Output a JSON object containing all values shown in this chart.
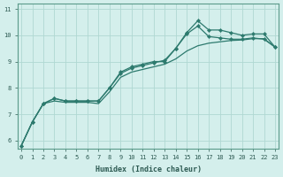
{
  "xlabel": "Humidex (Indice chaleur)",
  "bg_color": "#d4efec",
  "line_color": "#2d7a6e",
  "grid_color": "#b0d8d2",
  "xlim": [
    -0.3,
    23.3
  ],
  "ylim": [
    5.7,
    11.2
  ],
  "xticks": [
    0,
    1,
    2,
    3,
    4,
    5,
    6,
    7,
    8,
    9,
    10,
    11,
    12,
    13,
    14,
    15,
    16,
    17,
    18,
    19,
    20,
    21,
    22,
    23
  ],
  "yticks": [
    6,
    7,
    8,
    9,
    10,
    11
  ],
  "x": [
    0,
    1,
    2,
    3,
    4,
    5,
    6,
    7,
    8,
    9,
    10,
    11,
    12,
    13,
    14,
    15,
    16,
    17,
    18,
    19,
    20,
    21,
    22,
    23
  ],
  "line1": [
    5.8,
    6.7,
    7.4,
    7.6,
    7.5,
    7.5,
    7.5,
    7.5,
    8.0,
    8.6,
    8.8,
    8.9,
    9.0,
    9.0,
    9.5,
    10.1,
    10.55,
    10.2,
    10.2,
    10.1,
    10.0,
    10.05,
    10.05,
    9.55
  ],
  "line2": [
    5.8,
    6.7,
    7.4,
    7.6,
    7.5,
    7.5,
    7.5,
    7.5,
    8.0,
    8.55,
    8.75,
    8.85,
    8.95,
    9.05,
    9.5,
    10.05,
    10.35,
    9.95,
    9.9,
    9.85,
    9.85,
    9.9,
    9.85,
    9.55
  ],
  "line3": [
    5.8,
    6.7,
    7.4,
    7.5,
    7.45,
    7.45,
    7.45,
    7.4,
    7.85,
    8.4,
    8.6,
    8.7,
    8.8,
    8.9,
    9.1,
    9.4,
    9.6,
    9.7,
    9.75,
    9.8,
    9.82,
    9.87,
    9.87,
    9.55
  ]
}
